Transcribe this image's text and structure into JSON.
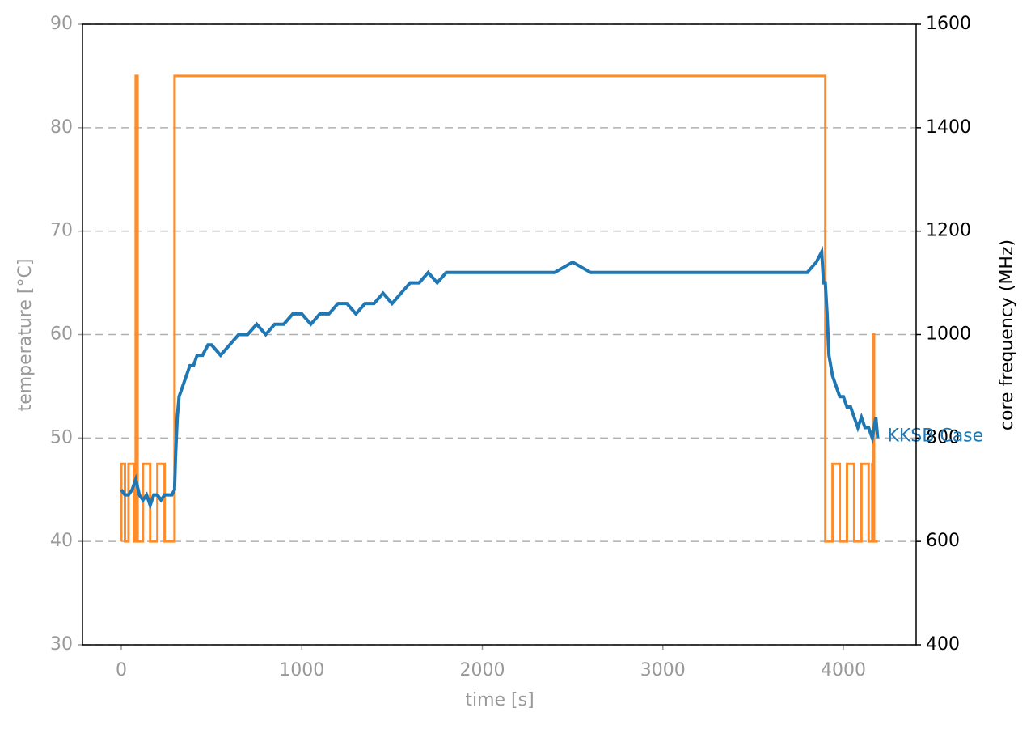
{
  "chart_data": {
    "type": "line",
    "xlabel": "time [s]",
    "ylabel": "temperature [°C]",
    "y2label": "core frequency (MHz)",
    "xlim": [
      -215,
      4403
    ],
    "xticks": [
      0,
      1000,
      2000,
      3000,
      4000
    ],
    "ylim": [
      30,
      90
    ],
    "yticks": [
      30,
      40,
      50,
      60,
      70,
      80,
      90
    ],
    "y2lim": [
      400,
      1600
    ],
    "y2ticks": [
      400,
      600,
      800,
      1000,
      1200,
      1400,
      1600
    ],
    "grid": true,
    "series": [
      {
        "name": "KKSB Case",
        "color": "#1f77b4",
        "x": [
          0,
          20,
          40,
          60,
          80,
          100,
          120,
          140,
          160,
          180,
          200,
          220,
          240,
          260,
          280,
          295,
          300,
          310,
          320,
          340,
          360,
          380,
          400,
          420,
          450,
          480,
          500,
          550,
          600,
          650,
          700,
          750,
          800,
          850,
          900,
          950,
          1000,
          1050,
          1100,
          1150,
          1200,
          1250,
          1300,
          1350,
          1400,
          1450,
          1500,
          1550,
          1600,
          1650,
          1700,
          1750,
          1800,
          1850,
          1900,
          1950,
          2000,
          2100,
          2200,
          2300,
          2400,
          2500,
          2600,
          2700,
          2800,
          2900,
          3000,
          3100,
          3200,
          3300,
          3400,
          3500,
          3600,
          3700,
          3800,
          3850,
          3880,
          3890,
          3900,
          3910,
          3920,
          3940,
          3960,
          3980,
          4000,
          4020,
          4040,
          4060,
          4080,
          4100,
          4120,
          4140,
          4160,
          4180,
          4190
        ],
        "values": [
          45,
          44.5,
          44.5,
          45,
          46,
          44.5,
          44,
          44.5,
          43.5,
          44.5,
          44.5,
          44,
          44.5,
          44.5,
          44.5,
          45,
          48,
          52,
          54,
          55,
          56,
          57,
          57,
          58,
          58,
          59,
          59,
          58,
          59,
          60,
          60,
          61,
          60,
          61,
          61,
          62,
          62,
          61,
          62,
          62,
          63,
          63,
          62,
          63,
          63,
          64,
          63,
          64,
          65,
          65,
          66,
          65,
          66,
          66,
          66,
          66,
          66,
          66,
          66,
          66,
          66,
          67,
          66,
          66,
          66,
          66,
          66,
          66,
          66,
          66,
          66,
          66,
          66,
          66,
          66,
          67,
          68,
          65,
          65,
          62,
          58,
          56,
          55,
          54,
          54,
          53,
          53,
          52,
          51,
          52,
          51,
          51,
          50,
          52,
          50
        ]
      },
      {
        "color": "#ff8c28",
        "axis": "y2",
        "x": [
          0,
          0,
          20,
          20,
          40,
          40,
          70,
          70,
          80,
          80,
          90,
          90,
          120,
          120,
          160,
          160,
          200,
          200,
          240,
          240,
          295,
          295,
          3900,
          3900,
          3940,
          3940,
          3980,
          3980,
          4020,
          4020,
          4060,
          4060,
          4100,
          4100,
          4140,
          4140,
          4160,
          4160,
          4165,
          4165,
          4170,
          4170,
          4190
        ],
        "values": [
          600,
          750,
          750,
          600,
          600,
          750,
          750,
          600,
          600,
          1500,
          1500,
          600,
          600,
          750,
          750,
          600,
          600,
          750,
          750,
          600,
          600,
          1500,
          1500,
          600,
          600,
          750,
          750,
          600,
          600,
          750,
          750,
          600,
          600,
          750,
          750,
          600,
          600,
          750,
          750,
          1000,
          1000,
          600,
          600
        ]
      }
    ]
  }
}
